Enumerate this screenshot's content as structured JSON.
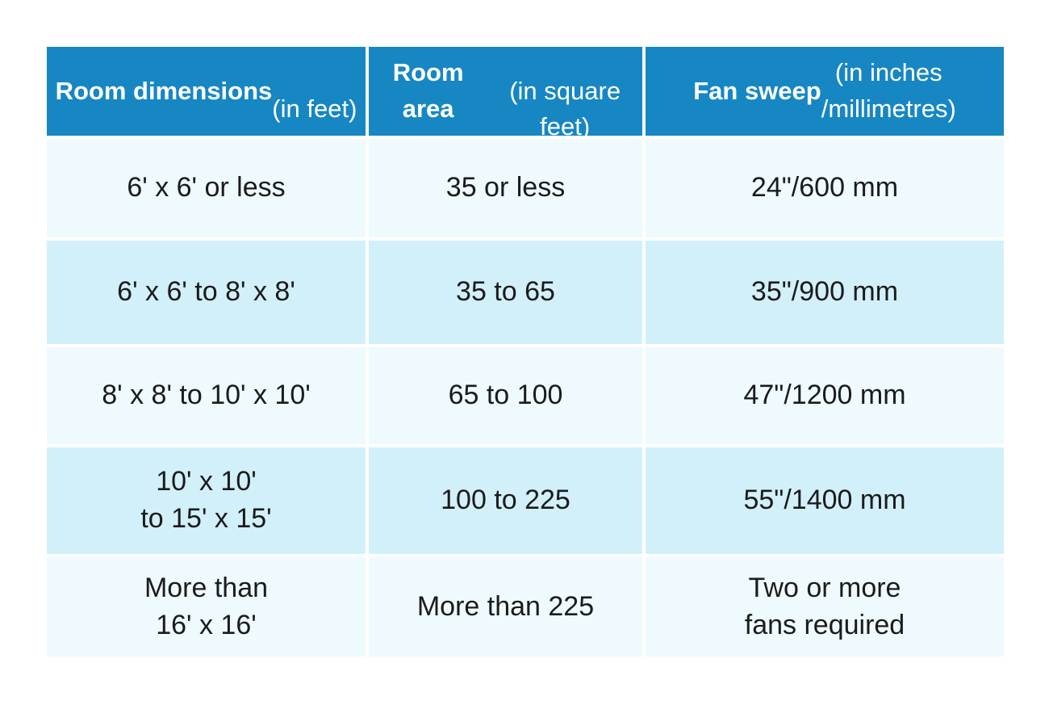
{
  "colors": {
    "header_bg": "#1787c3",
    "header_text": "#ffffff",
    "row_light_bg": "#eefafd",
    "row_dark_bg": "#d2f0fa",
    "body_text": "#1b1b1b",
    "page_bg": "#ffffff"
  },
  "table": {
    "headers": [
      {
        "bold": "Room dimensions",
        "rest": "\n(in feet)"
      },
      {
        "bold": "Room area",
        "rest": "\n(in square feet)"
      },
      {
        "bold": "Fan sweep",
        "rest": " (in inches\n/millimetres)"
      }
    ],
    "rows": [
      [
        "6' x 6' or less",
        "35 or less",
        "24\"/600 mm"
      ],
      [
        "6' x 6' to 8' x 8'",
        "35 to 65",
        "35\"/900 mm"
      ],
      [
        "8' x 8' to 10' x 10'",
        "65 to 100",
        "47\"/1200 mm"
      ],
      [
        "10' x 10'\nto 15' x 15'",
        "100 to 225",
        "55\"/1400 mm"
      ],
      [
        "More than\n16' x 16'",
        "More than 225",
        "Two or more\nfans required"
      ]
    ]
  },
  "chart_data": {
    "type": "table",
    "title": "",
    "columns": [
      "Room dimensions (in feet)",
      "Room area (in square feet)",
      "Fan sweep (in inches /millimetres)"
    ],
    "rows": [
      [
        "6' x 6' or less",
        "35 or less",
        "24\"/600 mm"
      ],
      [
        "6' x 6' to 8' x 8'",
        "35 to 65",
        "35\"/900 mm"
      ],
      [
        "8' x 8' to 10' x 10'",
        "65 to 100",
        "47\"/1200 mm"
      ],
      [
        "10' x 10' to 15' x 15'",
        "100 to 225",
        "55\"/1400 mm"
      ],
      [
        "More than 16' x 16'",
        "More than 225",
        "Two or more fans required"
      ]
    ]
  }
}
